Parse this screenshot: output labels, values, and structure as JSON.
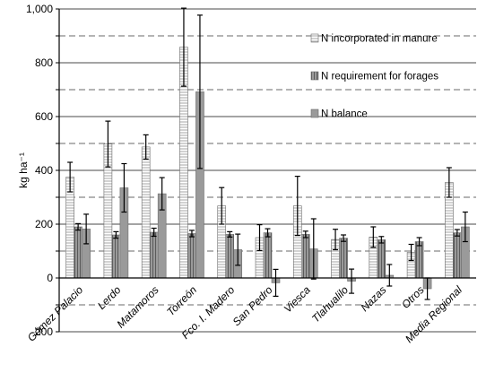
{
  "chart_data": {
    "type": "bar",
    "ylabel": "kg ha⁻¹",
    "ylim": [
      -200,
      1000
    ],
    "yticks": [
      "-200",
      "0",
      "200",
      "400",
      "600",
      "800",
      "1,000"
    ],
    "grid": "major solid, minor dashed",
    "legend_position": "top-right",
    "categories": [
      "Gómez Palacio",
      "Lerdo",
      "Matamoros",
      "Torreón",
      "Fco. I. Madero",
      "San Pedro",
      "Viesca",
      "Tlahualilo",
      "Nazas",
      "Otros",
      "Media Regional"
    ],
    "series": [
      {
        "name": "N incorporated in manure",
        "pattern": "horizontal-stripes",
        "values": [
          375,
          498,
          487,
          858,
          268,
          150,
          268,
          143,
          152,
          95,
          355
        ],
        "error": [
          55,
          85,
          45,
          145,
          68,
          48,
          110,
          38,
          38,
          30,
          55
        ]
      },
      {
        "name": "N requirement for forages",
        "pattern": "vertical-stripes",
        "values": [
          190,
          160,
          170,
          165,
          162,
          168,
          162,
          148,
          142,
          135,
          168
        ],
        "error": [
          12,
          12,
          15,
          12,
          10,
          15,
          12,
          12,
          12,
          15,
          12
        ]
      },
      {
        "name": "N balance",
        "pattern": "solid-gray",
        "values": [
          182,
          335,
          313,
          692,
          105,
          -18,
          108,
          -12,
          10,
          -40,
          190
        ],
        "error": [
          55,
          90,
          60,
          285,
          58,
          50,
          112,
          45,
          40,
          40,
          55
        ]
      }
    ]
  }
}
